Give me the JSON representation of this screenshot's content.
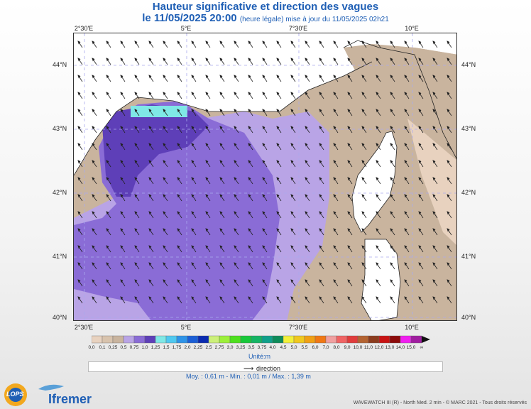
{
  "header": {
    "title": "Hauteur significative et direction des vagues",
    "date_prefix": "le 11/05/2025 20:00",
    "date_suffix": "(heure légale) mise à jour du 11/05/2025 02h21"
  },
  "map": {
    "lon_ticks": [
      "2°30'E",
      "5°E",
      "7°30'E",
      "10°E"
    ],
    "lat_ticks": [
      "44°N",
      "43°N",
      "42°N",
      "41°N",
      "40°N"
    ],
    "colors": {
      "land": "#c9b49e",
      "land_light": "#e8d2bf",
      "sea_light": "#b9a4e6",
      "sea_mid": "#8a6cd6",
      "sea_dark": "#5e3fb8",
      "sea_cyan": "#7fe8e6",
      "island": "#ffffff"
    }
  },
  "scale": {
    "labels": [
      "0,0",
      "0,1",
      "0,25",
      "0,5",
      "0,75",
      "1,0",
      "1,25",
      "1,5",
      "1,75",
      "2,0",
      "2,25",
      "2,5",
      "2,75",
      "3,0",
      "3,25",
      "3,5",
      "3,75",
      "4,0",
      "4,5",
      "5,0",
      "5,5",
      "6,0",
      "7,0",
      "8,0",
      "9,0",
      "10,0",
      "11,0",
      "12,0",
      "13,0",
      "14,0",
      "15,0",
      "∞"
    ],
    "colors": [
      "#e8d2bf",
      "#d8c3ad",
      "#c9b49e",
      "#b9a4e6",
      "#8a6cd6",
      "#5e3fb8",
      "#7fe8e6",
      "#4fc9f0",
      "#2e94e8",
      "#1b5fd6",
      "#0a2bb0",
      "#ccf07a",
      "#9cf03a",
      "#4ee01e",
      "#18c83a",
      "#14b464",
      "#10a08a",
      "#0e8c5a",
      "#f2f03a",
      "#f0c81e",
      "#f0a014",
      "#f07814",
      "#f0a0a0",
      "#f06464",
      "#e03c3c",
      "#b46432",
      "#8c3c1e",
      "#c81414",
      "#8c0a0a",
      "#f01ef0",
      "#a01ea0"
    ],
    "unit": "Unité:m"
  },
  "legend": {
    "direction_label": "direction"
  },
  "stats": {
    "text": "Moy. : 0,61 m   -   Min. : 0,01 m / Max. : 1,39 m"
  },
  "footer": {
    "lops": "LOPS",
    "ifremer": "Ifremer",
    "copyright": "WAVEWATCH III (R) - North Med. 2 min - © MARC 2021 - Tous droits réservés"
  }
}
